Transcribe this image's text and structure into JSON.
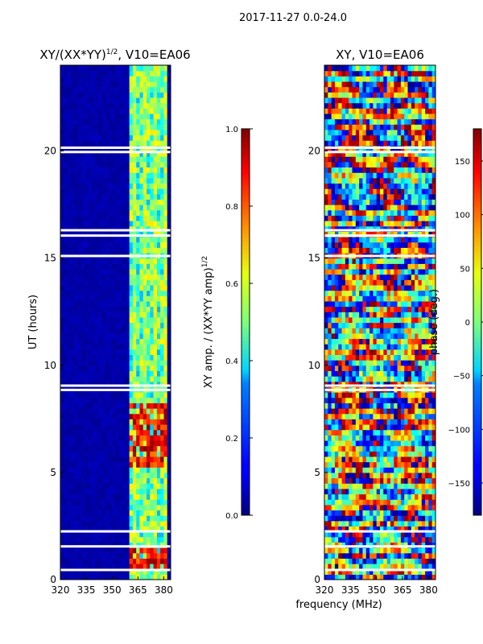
{
  "figure": {
    "suptitle": "2017-11-27 0.0-24.0",
    "xlabel_shared": "frequency (MHz)"
  },
  "chart_data": [
    {
      "type": "heatmap",
      "title": "XY/(XX*YY)^{1/2}, V10=EA06",
      "title_main": "XY/(XX*YY)",
      "title_sup": "1/2",
      "title_tail": ", V10=EA06",
      "xlabel": "frequency (MHz)",
      "ylabel": "UT (hours)",
      "xlim": [
        320,
        384
      ],
      "ylim": [
        0,
        24
      ],
      "xticks": [
        320,
        335,
        350,
        365,
        380
      ],
      "yticks": [
        0,
        5,
        10,
        15,
        20
      ],
      "colorbar": {
        "label": "XY amp. / (XX*YY amp)^{1/2}",
        "label_main": "XY amp. / (XX*YY amp)",
        "label_sup": "1/2",
        "range": [
          0.0,
          1.0
        ],
        "ticks": [
          "0.0",
          "0.2",
          "0.4",
          "0.6",
          "0.8",
          "1.0"
        ],
        "colormap": "jet"
      },
      "gap_hours": [
        0.45,
        1.55,
        2.25,
        8.85,
        9.05,
        15.1,
        16.05,
        16.3,
        19.95,
        20.15
      ],
      "active_band_mhz": [
        361,
        382
      ],
      "high_value_hours": [
        [
          0.6,
          1.4
        ],
        [
          5.2,
          8.2
        ]
      ]
    },
    {
      "type": "heatmap",
      "title": "XY, V10=EA06",
      "xlabel": "frequency (MHz)",
      "ylabel": "",
      "xlim": [
        320,
        384
      ],
      "ylim": [
        0,
        24
      ],
      "xticks": [
        320,
        335,
        350,
        365,
        380
      ],
      "yticks": [
        0,
        5,
        10,
        15,
        20
      ],
      "colorbar": {
        "label": "phase (deg.)",
        "range": [
          -180,
          180
        ],
        "ticks": [
          "150",
          "100",
          "50",
          "0",
          "−50",
          "−100",
          "−150"
        ],
        "colormap": "jet"
      },
      "gap_hours": [
        0.45,
        1.55,
        2.25,
        8.85,
        9.05,
        15.1,
        16.05,
        16.3,
        19.95,
        20.15
      ]
    }
  ]
}
